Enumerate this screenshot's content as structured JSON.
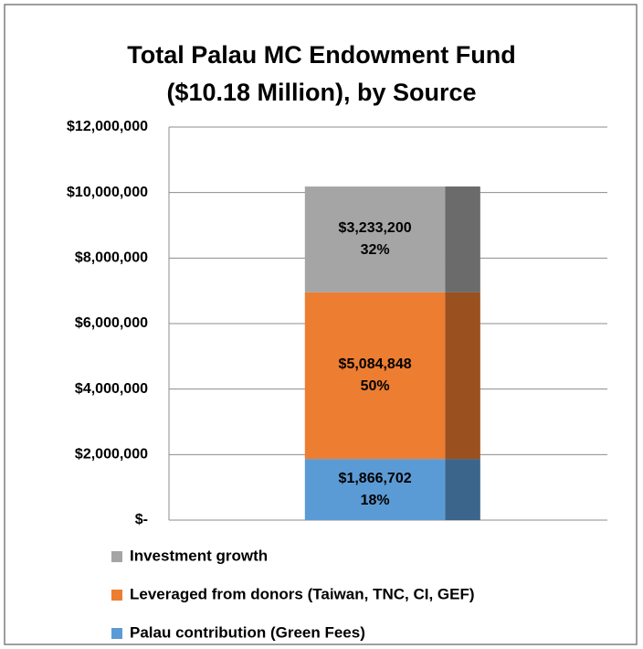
{
  "chart_data": {
    "type": "stacked_bar",
    "title": [
      "Total Palau MC Endowment Fund",
      "($10.18 Million), by Source"
    ],
    "categories": [
      null
    ],
    "series": [
      {
        "name": "Palau contribution (Green Fees)",
        "color": "#5b9bd5",
        "values": [
          1866702
        ],
        "value_labels": [
          "$1,866,702"
        ],
        "percents": [
          18
        ],
        "percent_labels": [
          "18%"
        ]
      },
      {
        "name": "Leveraged from donors (Taiwan, TNC, CI, GEF)",
        "color": "#ed7d31",
        "values": [
          5084848
        ],
        "value_labels": [
          "$5,084,848"
        ],
        "percents": [
          50
        ],
        "percent_labels": [
          "50%"
        ]
      },
      {
        "name": "Investment growth",
        "color": "#a5a5a5",
        "values": [
          3233200
        ],
        "value_labels": [
          "$3,233,200"
        ],
        "percents": [
          32
        ],
        "percent_labels": [
          "32%"
        ]
      }
    ],
    "ylim": [
      0,
      12000000
    ],
    "yticks": [
      {
        "value": 0,
        "label": "$-"
      },
      {
        "value": 2000000,
        "label": "$2,000,000"
      },
      {
        "value": 4000000,
        "label": "$4,000,000"
      },
      {
        "value": 6000000,
        "label": "$6,000,000"
      },
      {
        "value": 8000000,
        "label": "$8,000,000"
      },
      {
        "value": 10000000,
        "label": "$10,000,000"
      },
      {
        "value": 12000000,
        "label": "$12,000,000"
      }
    ],
    "grid": true,
    "legend": "bottom"
  }
}
